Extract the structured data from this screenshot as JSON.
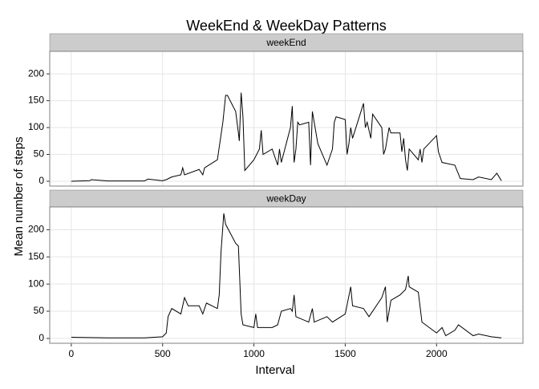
{
  "chart_data": {
    "type": "line",
    "title": "WeekEnd & WeekDay Patterns",
    "x_label": "Interval",
    "y_label": "Mean number of steps",
    "facets": true,
    "grid": true,
    "xlim": [
      -118,
      2473
    ],
    "xticks": [
      0,
      500,
      1000,
      1500,
      2000
    ],
    "ylim": [
      -9,
      242
    ],
    "yticks": [
      0,
      50,
      100,
      150,
      200
    ],
    "series": [
      {
        "name": "weekEnd",
        "color": "#000000",
        "x": [
          0,
          100,
          110,
          200,
          400,
          420,
          500,
          520,
          550,
          600,
          610,
          620,
          700,
          720,
          730,
          800,
          815,
          830,
          845,
          855,
          900,
          915,
          920,
          930,
          940,
          950,
          1000,
          1030,
          1040,
          1050,
          1100,
          1130,
          1140,
          1150,
          1200,
          1210,
          1220,
          1230,
          1240,
          1250,
          1300,
          1310,
          1320,
          1330,
          1340,
          1350,
          1400,
          1420,
          1430,
          1440,
          1450,
          1500,
          1510,
          1520,
          1530,
          1540,
          1600,
          1610,
          1620,
          1640,
          1650,
          1700,
          1710,
          1720,
          1730,
          1740,
          1750,
          1800,
          1810,
          1820,
          1830,
          1840,
          1850,
          1900,
          1910,
          1920,
          1930,
          2000,
          2010,
          2030,
          2100,
          2130,
          2200,
          2230,
          2300,
          2330,
          2355
        ],
        "values": [
          0,
          1,
          3,
          0.5,
          0.5,
          4,
          1,
          3,
          8,
          12,
          25,
          12,
          22,
          12,
          25,
          40,
          75,
          110,
          160,
          160,
          130,
          90,
          75,
          165,
          120,
          20,
          40,
          60,
          95,
          50,
          60,
          30,
          60,
          35,
          100,
          140,
          35,
          60,
          110,
          105,
          110,
          30,
          130,
          110,
          90,
          70,
          30,
          50,
          60,
          110,
          120,
          115,
          50,
          70,
          100,
          80,
          145,
          100,
          110,
          80,
          125,
          100,
          50,
          60,
          80,
          100,
          90,
          90,
          55,
          80,
          40,
          20,
          60,
          40,
          60,
          35,
          60,
          85,
          55,
          35,
          30,
          5,
          3,
          8,
          3,
          15,
          1
        ]
      },
      {
        "name": "weekDay",
        "color": "#000000",
        "x": [
          0,
          200,
          400,
          500,
          520,
          530,
          550,
          600,
          620,
          640,
          700,
          720,
          740,
          800,
          810,
          820,
          835,
          845,
          900,
          915,
          930,
          940,
          1000,
          1010,
          1020,
          1100,
          1130,
          1150,
          1200,
          1210,
          1220,
          1230,
          1300,
          1320,
          1330,
          1400,
          1430,
          1500,
          1530,
          1540,
          1600,
          1630,
          1700,
          1720,
          1730,
          1750,
          1800,
          1830,
          1845,
          1850,
          1900,
          1920,
          2000,
          2030,
          2050,
          2100,
          2120,
          2200,
          2230,
          2300,
          2355
        ],
        "values": [
          2,
          1,
          1,
          3,
          10,
          40,
          55,
          45,
          75,
          60,
          60,
          45,
          65,
          55,
          80,
          160,
          230,
          210,
          175,
          170,
          45,
          25,
          20,
          45,
          20,
          20,
          25,
          50,
          55,
          50,
          80,
          40,
          30,
          55,
          30,
          40,
          30,
          45,
          95,
          60,
          55,
          40,
          75,
          95,
          30,
          70,
          80,
          90,
          115,
          95,
          85,
          30,
          10,
          20,
          5,
          15,
          25,
          5,
          8,
          3,
          1
        ]
      }
    ]
  }
}
